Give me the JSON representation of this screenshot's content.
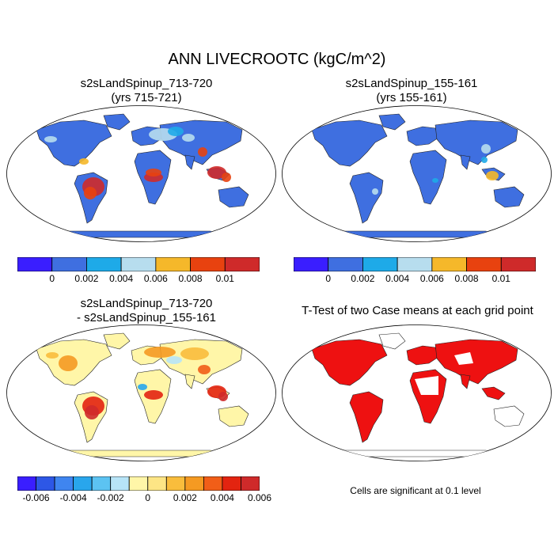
{
  "title": "ANN LIVECROOTC (kgC/m^2)",
  "panels": [
    {
      "line1": "s2sLandSpinup_713-720",
      "line2": "(yrs 715-721)"
    },
    {
      "line1": "s2sLandSpinup_155-161",
      "line2": "(yrs 155-161)"
    },
    {
      "line1": "s2sLandSpinup_713-720",
      "line2": "- s2sLandSpinup_155-161"
    },
    {
      "line1": "T-Test of two Case means at each grid point",
      "line2": ""
    }
  ],
  "colorbar_levels": {
    "colors": [
      "#3a1eff",
      "#3f6fe0",
      "#1eaae8",
      "#b7ddee",
      "#f5b82a",
      "#e8420f",
      "#cf2a2a"
    ],
    "tick_labels": [
      "0",
      "0.002",
      "0.004",
      "0.006",
      "0.008",
      "0.01"
    ]
  },
  "colorbar_diff": {
    "colors": [
      "#3a1eff",
      "#2d57e6",
      "#3f85f0",
      "#29a6ec",
      "#5cc3f2",
      "#b7e4f7",
      "#fff6a8",
      "#fde585",
      "#f9bd3c",
      "#f59a22",
      "#f15e18",
      "#e32410",
      "#cf2a2a"
    ],
    "tick_labels": [
      "-0.006",
      "-0.004",
      "-0.002",
      "0",
      "0.002",
      "0.004",
      "0.006"
    ]
  },
  "map_colors": {
    "ocean": "#ffffff",
    "land_base_levels": "#3f6fe0",
    "land_base_diff": "#fff6a8",
    "ttest": "#ee1111",
    "coast": "#222222"
  },
  "note": "Cells are significant at 0.1 level"
}
